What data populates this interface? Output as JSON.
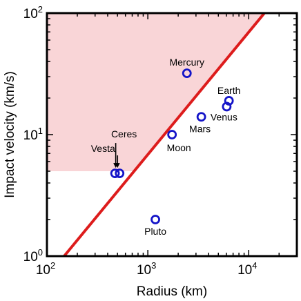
{
  "chart_data": {
    "type": "scatter",
    "xlabel": "Radius (km)",
    "ylabel": "Impact velocity (km/s)",
    "x_scale": "log",
    "y_scale": "log",
    "xlim": [
      100,
      30000
    ],
    "ylim": [
      1,
      100
    ],
    "x_ticks": [
      {
        "value": 100,
        "base": "10",
        "exp": "2"
      },
      {
        "value": 1000,
        "base": "10",
        "exp": "3"
      },
      {
        "value": 10000,
        "base": "10",
        "exp": "4"
      }
    ],
    "y_ticks": [
      {
        "value": 1,
        "base": "10",
        "exp": "0"
      },
      {
        "value": 10,
        "base": "10",
        "exp": "1"
      },
      {
        "value": 100,
        "base": "10",
        "exp": "2"
      }
    ],
    "points": [
      {
        "name": "Mercury",
        "x": 2440,
        "y": 32
      },
      {
        "name": "Earth",
        "x": 6371,
        "y": 19
      },
      {
        "name": "Venus",
        "x": 6052,
        "y": 17
      },
      {
        "name": "Mars",
        "x": 3390,
        "y": 14
      },
      {
        "name": "Moon",
        "x": 1737,
        "y": 10
      },
      {
        "name": "Ceres",
        "x": 473,
        "y": 4.8
      },
      {
        "name": "Vesta",
        "x": 525,
        "y": 4.8
      },
      {
        "name": "Pluto",
        "x": 1188,
        "y": 2.0
      }
    ],
    "line": {
      "points": [
        [
          148,
          1
        ],
        [
          14300,
          100
        ]
      ],
      "color": "#dd1c1c"
    },
    "shaded_region": {
      "x_range": [
        100,
        14300
      ],
      "y_min": 5,
      "y_max": 100,
      "color": "#f9d5d7"
    },
    "marker_color": "#1414c8",
    "grid": false
  }
}
